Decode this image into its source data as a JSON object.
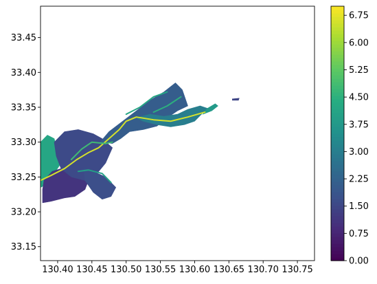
{
  "chart_data": {
    "type": "heatmap",
    "title": "",
    "xlabel": "",
    "ylabel": "",
    "xlim": [
      130.375,
      130.775
    ],
    "ylim": [
      33.13,
      33.495
    ],
    "x_ticks": [
      130.4,
      130.45,
      130.5,
      130.55,
      130.6,
      130.65,
      130.7,
      130.75
    ],
    "x_tick_labels": [
      "130.40",
      "130.45",
      "130.50",
      "130.55",
      "130.60",
      "130.65",
      "130.70",
      "130.75"
    ],
    "y_ticks": [
      33.15,
      33.2,
      33.25,
      33.3,
      33.35,
      33.4,
      33.45
    ],
    "y_tick_labels": [
      "33.15",
      "33.20",
      "33.25",
      "33.30",
      "33.35",
      "33.40",
      "33.45"
    ],
    "grid": false,
    "colormap": "viridis",
    "colorbar": {
      "range": [
        0,
        7
      ],
      "ticks": [
        0.0,
        0.75,
        1.5,
        2.25,
        3.0,
        3.75,
        4.5,
        5.25,
        6.0,
        6.75
      ],
      "tick_labels": [
        "0.00",
        "0.75",
        "1.50",
        "2.25",
        "3.00",
        "3.75",
        "4.50",
        "5.25",
        "6.00",
        "6.75"
      ]
    },
    "regions": [
      {
        "polygon": [
          [
            130.375,
            33.3
          ],
          [
            130.385,
            33.31
          ],
          [
            130.395,
            33.305
          ],
          [
            130.4,
            33.285
          ],
          [
            130.405,
            33.27
          ],
          [
            130.395,
            33.255
          ],
          [
            130.385,
            33.24
          ],
          [
            130.375,
            33.235
          ]
        ],
        "value": 4.2
      },
      {
        "polygon": [
          [
            130.378,
            33.232
          ],
          [
            130.38,
            33.245
          ],
          [
            130.392,
            33.258
          ],
          [
            130.405,
            33.262
          ],
          [
            130.42,
            33.262
          ],
          [
            130.44,
            33.255
          ],
          [
            130.445,
            33.245
          ],
          [
            130.44,
            33.232
          ],
          [
            130.425,
            33.222
          ],
          [
            130.41,
            33.22
          ],
          [
            130.39,
            33.215
          ],
          [
            130.378,
            33.213
          ]
        ],
        "value": 1.1
      },
      {
        "polygon": [
          [
            130.395,
            33.3
          ],
          [
            130.41,
            33.315
          ],
          [
            130.43,
            33.318
          ],
          [
            130.452,
            33.312
          ],
          [
            130.465,
            33.305
          ],
          [
            130.48,
            33.292
          ],
          [
            130.47,
            33.27
          ],
          [
            130.455,
            33.252
          ],
          [
            130.44,
            33.245
          ],
          [
            130.42,
            33.25
          ],
          [
            130.405,
            33.262
          ],
          [
            130.398,
            33.28
          ]
        ],
        "value": 1.6
      },
      {
        "polygon": [
          [
            130.438,
            33.262
          ],
          [
            130.452,
            33.258
          ],
          [
            130.47,
            33.25
          ],
          [
            130.485,
            33.235
          ],
          [
            130.478,
            33.222
          ],
          [
            130.465,
            33.218
          ],
          [
            130.452,
            33.228
          ],
          [
            130.44,
            33.245
          ]
        ],
        "value": 1.7
      },
      {
        "polygon": [
          [
            130.462,
            33.3
          ],
          [
            130.475,
            33.315
          ],
          [
            130.495,
            33.33
          ],
          [
            130.515,
            33.345
          ],
          [
            130.535,
            33.36
          ],
          [
            130.555,
            33.372
          ],
          [
            130.572,
            33.385
          ],
          [
            130.582,
            33.375
          ],
          [
            130.59,
            33.352
          ],
          [
            130.575,
            33.345
          ],
          [
            130.56,
            33.335
          ],
          [
            130.545,
            33.323
          ],
          [
            130.525,
            33.318
          ],
          [
            130.505,
            33.315
          ],
          [
            130.492,
            33.305
          ],
          [
            130.48,
            33.298
          ]
        ],
        "value": 2.1
      },
      {
        "polygon": [
          [
            130.515,
            33.335
          ],
          [
            130.525,
            33.33
          ],
          [
            130.545,
            33.325
          ],
          [
            130.565,
            33.322
          ],
          [
            130.585,
            33.325
          ],
          [
            130.6,
            33.33
          ],
          [
            130.612,
            33.342
          ],
          [
            130.62,
            33.348
          ],
          [
            130.608,
            33.352
          ],
          [
            130.59,
            33.347
          ],
          [
            130.575,
            33.34
          ],
          [
            130.555,
            33.337
          ],
          [
            130.535,
            33.34
          ]
        ],
        "value": 3.0
      },
      {
        "polygon": [
          [
            130.612,
            33.34
          ],
          [
            130.625,
            33.345
          ],
          [
            130.634,
            33.352
          ],
          [
            130.63,
            33.355
          ],
          [
            130.618,
            33.348
          ]
        ],
        "value": 3.8
      },
      {
        "polygon": [
          [
            130.655,
            33.362
          ],
          [
            130.665,
            33.363
          ],
          [
            130.664,
            33.36
          ],
          [
            130.655,
            33.36
          ]
        ],
        "value": 1.5
      }
    ],
    "rivers": [
      {
        "points": [
          [
            130.375,
            33.245
          ],
          [
            130.39,
            33.252
          ],
          [
            130.41,
            33.262
          ],
          [
            130.428,
            33.275
          ],
          [
            130.445,
            33.285
          ],
          [
            130.46,
            33.292
          ],
          [
            130.475,
            33.305
          ],
          [
            130.49,
            33.318
          ],
          [
            130.5,
            33.33
          ],
          [
            130.515,
            33.336
          ],
          [
            130.54,
            33.332
          ],
          [
            130.565,
            33.33
          ],
          [
            130.59,
            33.336
          ],
          [
            130.615,
            33.343
          ]
        ],
        "value": 6.6
      },
      {
        "points": [
          [
            130.42,
            33.275
          ],
          [
            130.435,
            33.29
          ],
          [
            130.45,
            33.3
          ],
          [
            130.47,
            33.298
          ],
          [
            130.48,
            33.3
          ]
        ],
        "value": 4.8
      },
      {
        "points": [
          [
            130.43,
            33.258
          ],
          [
            130.445,
            33.26
          ],
          [
            130.465,
            33.255
          ],
          [
            130.478,
            33.242
          ]
        ],
        "value": 4.0
      },
      {
        "points": [
          [
            130.5,
            33.34
          ],
          [
            130.52,
            33.35
          ],
          [
            130.54,
            33.365
          ],
          [
            130.56,
            33.372
          ]
        ],
        "value": 4.2
      },
      {
        "points": [
          [
            130.54,
            33.343
          ],
          [
            130.56,
            33.352
          ],
          [
            130.58,
            33.365
          ]
        ],
        "value": 4.5
      }
    ]
  }
}
